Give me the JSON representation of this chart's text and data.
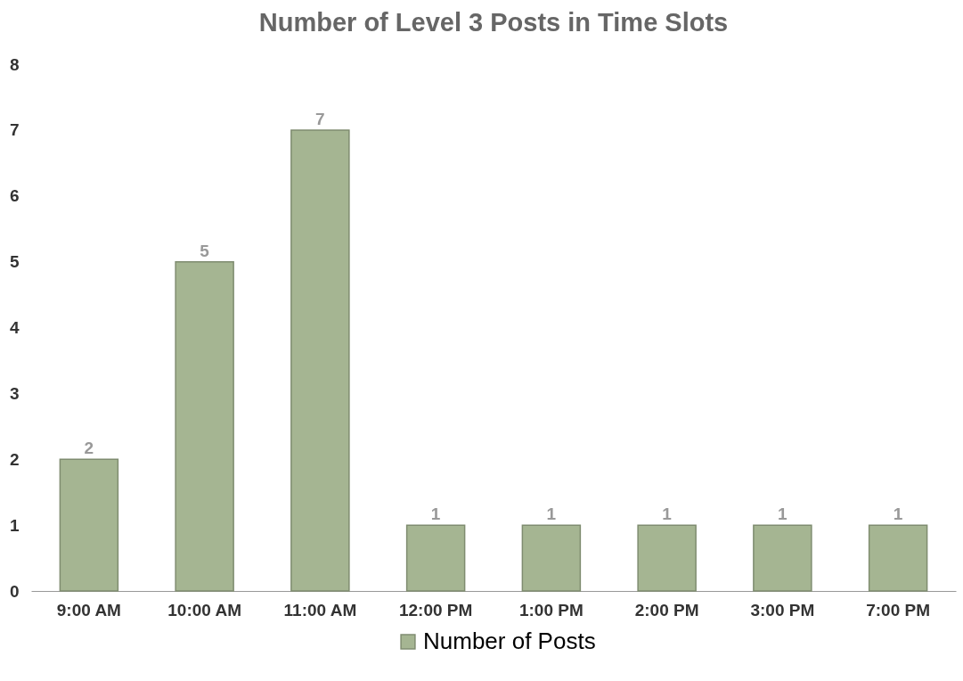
{
  "chart_data": {
    "type": "bar",
    "title": "Number of Level 3 Posts in Time Slots",
    "categories": [
      "9:00 AM",
      "10:00 AM",
      "11:00 AM",
      "12:00 PM",
      "1:00 PM",
      "2:00 PM",
      "3:00 PM",
      "7:00 PM"
    ],
    "series": [
      {
        "name": "Number of Posts",
        "color": "#a5b592",
        "values": [
          2,
          5,
          7,
          1,
          1,
          1,
          1,
          1
        ]
      }
    ],
    "ylim": [
      0,
      8
    ],
    "yticks": [
      0,
      1,
      2,
      3,
      4,
      5,
      6,
      7,
      8
    ],
    "grid": false,
    "legend": "bottom",
    "data_labels": true
  }
}
